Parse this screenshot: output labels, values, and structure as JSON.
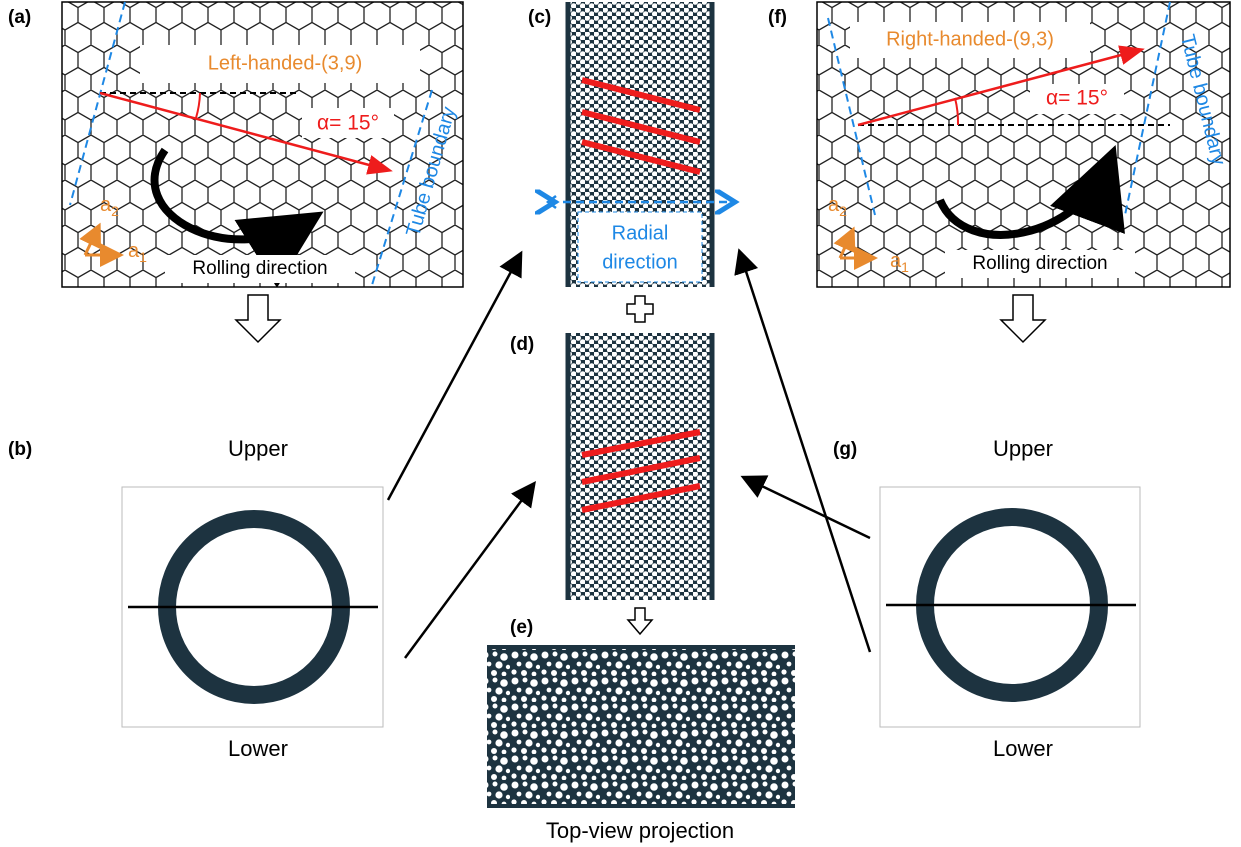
{
  "panels": {
    "a": {
      "label": "(a)",
      "chirality": "Left-handed-(3,9)",
      "angle": "α= 15°",
      "boundary": "Tube boundary",
      "vector2": {
        "base": "a",
        "sub": "2"
      },
      "vector1": {
        "base": "a",
        "sub": "1"
      },
      "rolling": "Rolling direction"
    },
    "b": {
      "label": "(b)",
      "upper": "Upper",
      "lower": "Lower"
    },
    "c": {
      "label": "(c)",
      "radial": [
        "Radial",
        "direction"
      ]
    },
    "d": {
      "label": "(d)"
    },
    "e": {
      "label": "(e)",
      "caption": "Top-view projection"
    },
    "f": {
      "label": "(f)",
      "chirality": "Right-handed-(9,3)",
      "angle": "α= 15°",
      "boundary": "Tube boundary",
      "vector2": {
        "base": "a",
        "sub": "2"
      },
      "vector1": {
        "base": "a",
        "sub": "1"
      },
      "rolling": "Rolling direction"
    },
    "g": {
      "label": "(g)",
      "upper": "Upper",
      "lower": "Lower"
    }
  }
}
